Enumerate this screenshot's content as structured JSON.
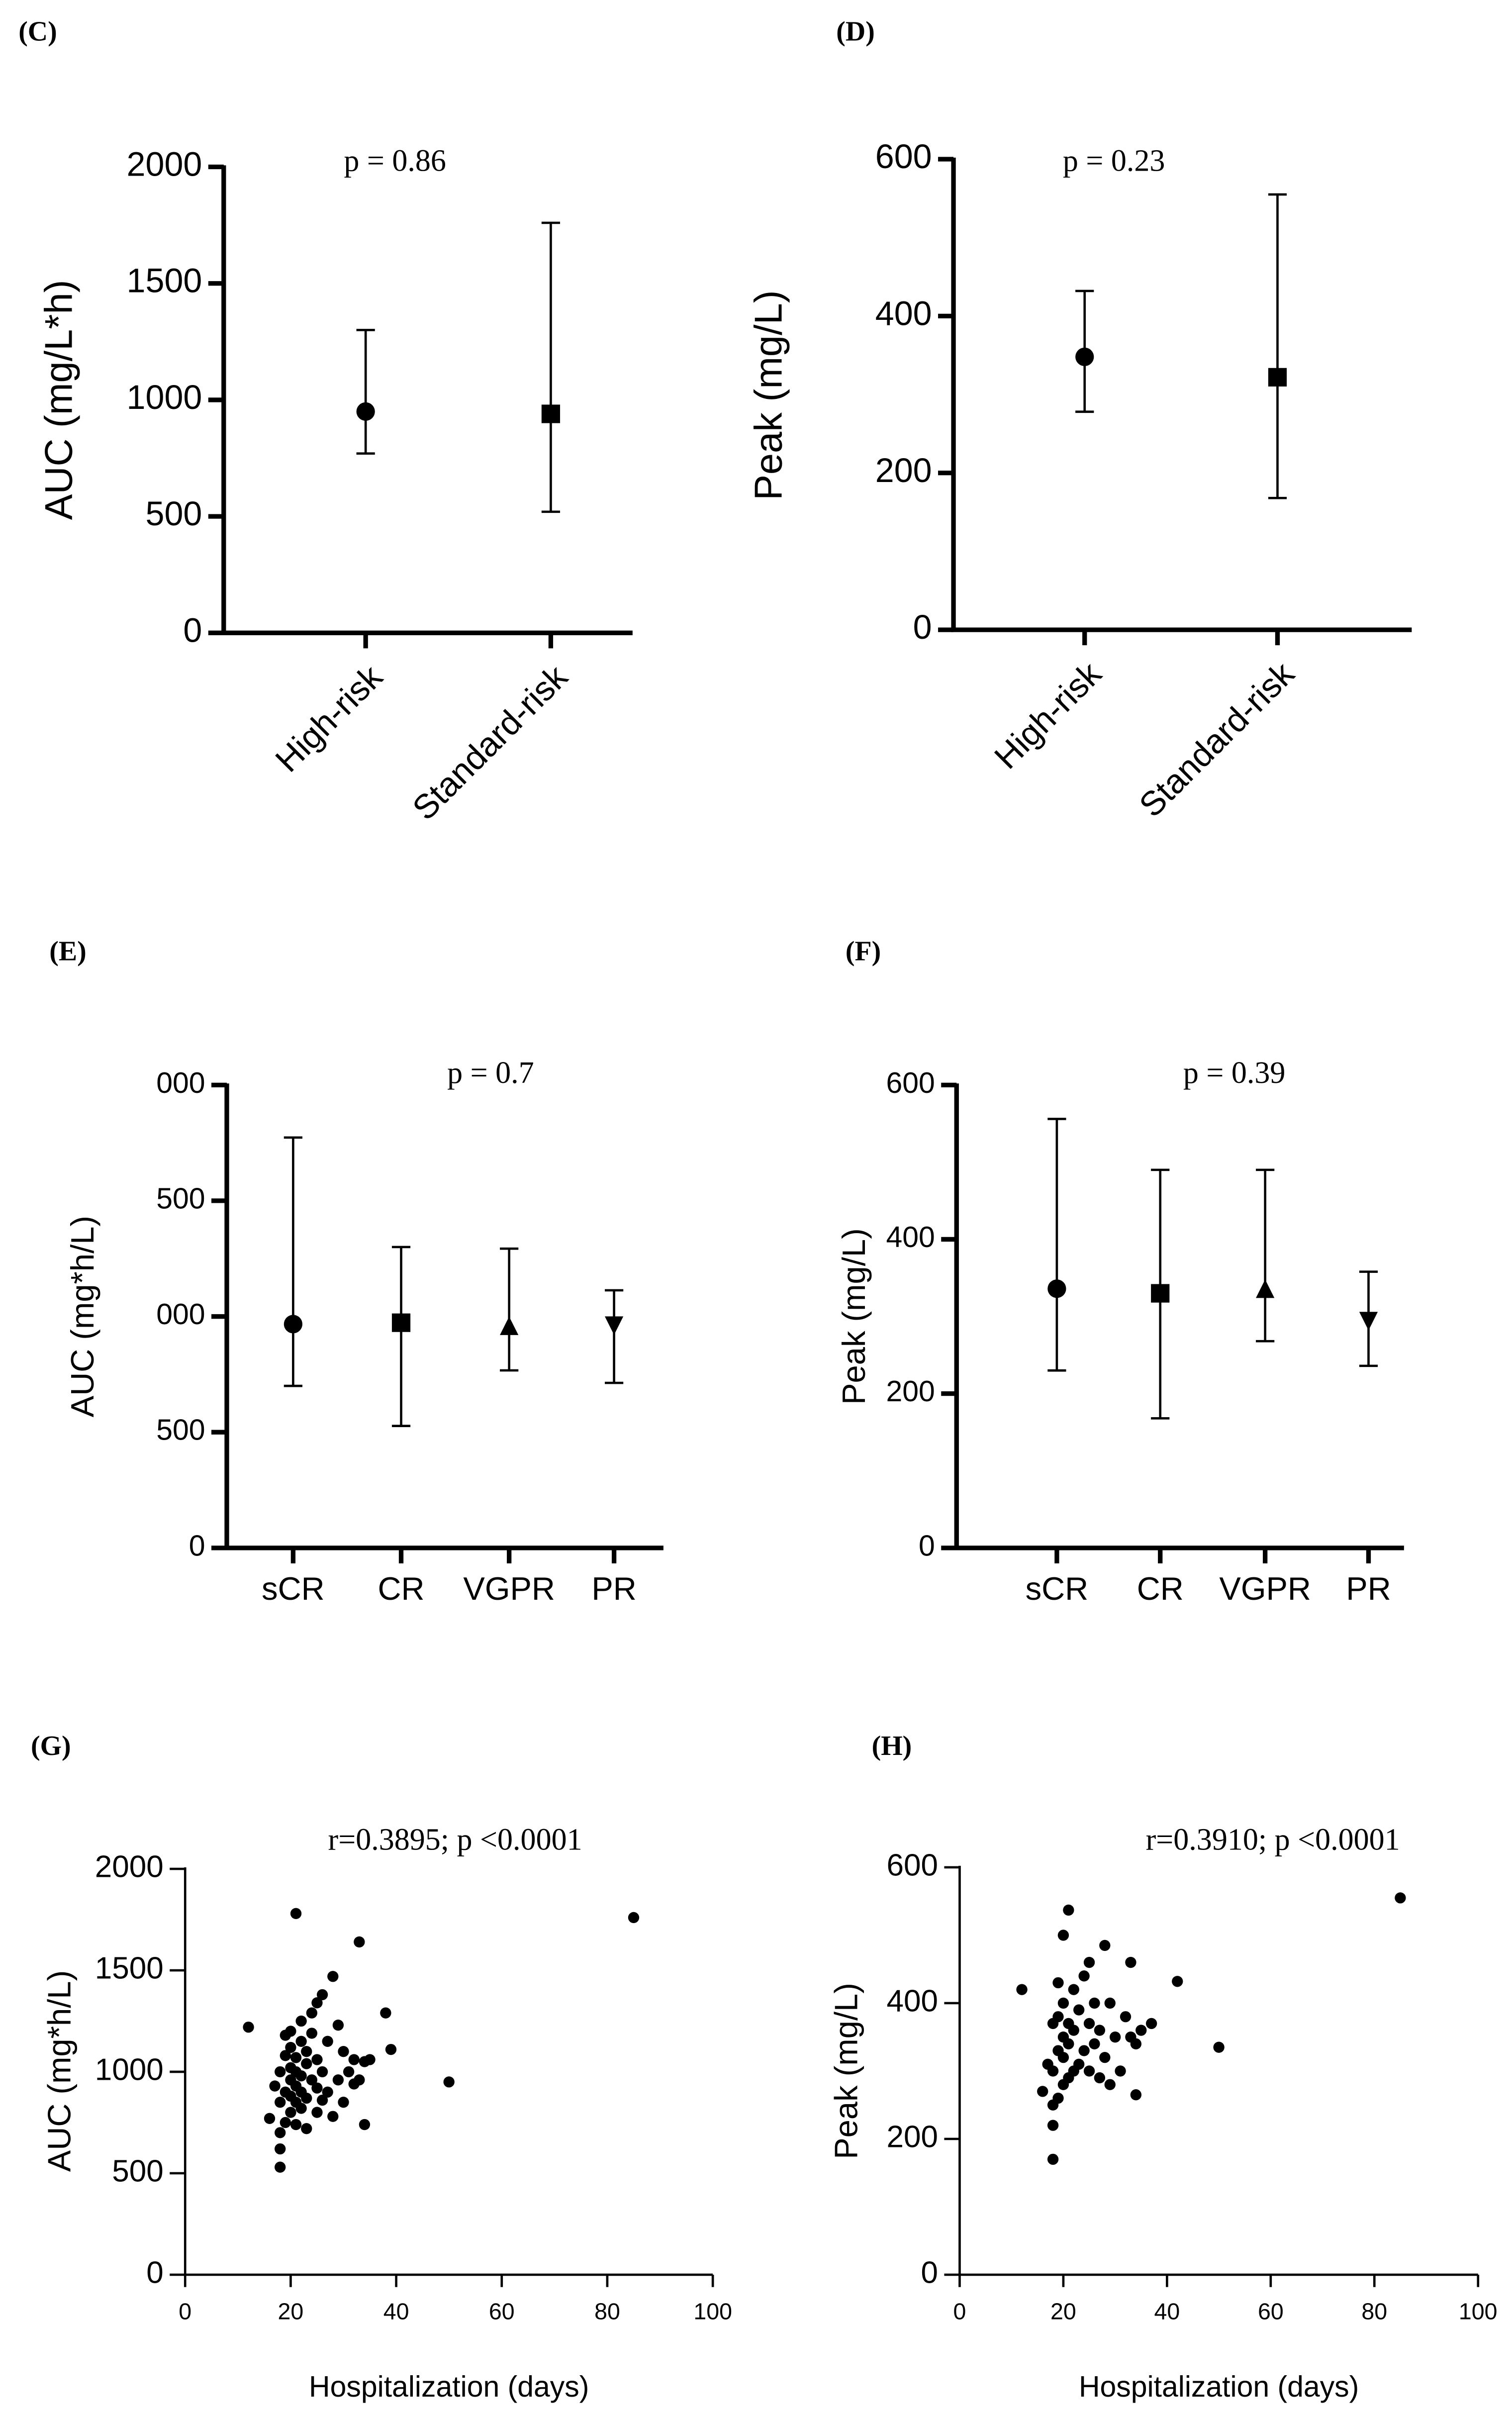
{
  "chart_data": [
    {
      "type": "errorbar",
      "panel": "(C)",
      "annotation": "p = 0.86",
      "ylabel": "AUC (mg/L*h)",
      "categories": [
        "High-risk",
        "Standard-risk"
      ],
      "values": [
        950,
        940
      ],
      "lower": [
        770,
        520
      ],
      "upper": [
        1300,
        1760
      ],
      "markers": [
        "circle",
        "square"
      ],
      "color": "#000000",
      "xtick_rotation": 45,
      "ylim": [
        0,
        2000
      ],
      "yticks": [
        0,
        500,
        1000,
        1500,
        2000
      ]
    },
    {
      "type": "errorbar",
      "panel": "(D)",
      "annotation": "p = 0.23",
      "ylabel": "Peak (mg/L)",
      "categories": [
        "High-risk",
        "Standard-risk"
      ],
      "values": [
        348,
        322
      ],
      "lower": [
        278,
        168
      ],
      "upper": [
        432,
        555
      ],
      "markers": [
        "circle",
        "square"
      ],
      "color": "#000000",
      "xtick_rotation": 45,
      "ylim": [
        0,
        600
      ],
      "yticks": [
        0,
        200,
        400,
        600
      ]
    },
    {
      "type": "errorbar",
      "panel": "(E)",
      "annotation": "p = 0.7",
      "ylabel": "AUC (mg*h/L)",
      "categories": [
        "sCR",
        "CR",
        "VGPR",
        "PR"
      ],
      "values": [
        967,
        973,
        953,
        967
      ],
      "lower": [
        700,
        527,
        767,
        713
      ],
      "upper": [
        1773,
        1300,
        1293,
        1113
      ],
      "markers": [
        "circle",
        "square",
        "triangle",
        "triangle-down"
      ],
      "color": "#000000",
      "xtick_rotation": 0,
      "ylim": [
        0,
        2000
      ],
      "yticks": [
        0,
        500,
        {
          "value": 1000,
          "label": "000"
        },
        {
          "value": 1500,
          "label": "500"
        },
        {
          "value": 2000,
          "label": "000"
        }
      ]
    },
    {
      "type": "errorbar",
      "panel": "(F)",
      "annotation": "p = 0.39",
      "ylabel": "Peak (mg/L)",
      "categories": [
        "sCR",
        "CR",
        "VGPR",
        "PR"
      ],
      "values": [
        336,
        330,
        334,
        296
      ],
      "lower": [
        230,
        168,
        268,
        236
      ],
      "upper": [
        556,
        490,
        490,
        358
      ],
      "markers": [
        "circle",
        "square",
        "triangle",
        "triangle-down"
      ],
      "color": "#000000",
      "xtick_rotation": 0,
      "ylim": [
        0,
        600
      ],
      "yticks": [
        0,
        200,
        400,
        600
      ]
    },
    {
      "type": "scatter",
      "panel": "(G)",
      "annotation": "r=0.3895; p <0.0001",
      "ylabel": "AUC (mg*h/L)",
      "xlabel": "Hospitalization (days)",
      "color": "#000000",
      "x": [
        12,
        16,
        17,
        18,
        18,
        18,
        18,
        18,
        19,
        19,
        19,
        19,
        20,
        20,
        20,
        20,
        20,
        20,
        21,
        21,
        21,
        21,
        21,
        21,
        22,
        22,
        22,
        22,
        22,
        23,
        23,
        23,
        23,
        24,
        24,
        24,
        25,
        25,
        25,
        25,
        26,
        26,
        26,
        27,
        27,
        28,
        28,
        29,
        29,
        30,
        30,
        31,
        32,
        32,
        33,
        33,
        34,
        34,
        35,
        38,
        39,
        50,
        85
      ],
      "values": [
        1220,
        770,
        930,
        530,
        620,
        700,
        850,
        1000,
        750,
        900,
        1080,
        1180,
        800,
        880,
        960,
        1020,
        1120,
        1200,
        1780,
        740,
        850,
        930,
        1000,
        1070,
        820,
        900,
        1150,
        1250,
        980,
        720,
        870,
        1040,
        1100,
        960,
        1190,
        1290,
        800,
        920,
        1060,
        1340,
        860,
        1000,
        1380,
        900,
        1150,
        780,
        1470,
        960,
        1230,
        850,
        1100,
        1000,
        940,
        1060,
        1640,
        960,
        740,
        1050,
        1060,
        1290,
        1110,
        950,
        1760
      ],
      "xlim": [
        0,
        100
      ],
      "xticks": [
        0,
        20,
        40,
        60,
        80,
        100
      ],
      "ylim": [
        0,
        2000
      ],
      "yticks": [
        0,
        500,
        1000,
        1500,
        2000
      ]
    },
    {
      "type": "scatter",
      "panel": "(H)",
      "annotation": "r=0.3910; p <0.0001",
      "ylabel": "Peak (mg/L)",
      "xlabel": "Hospitalization (days)",
      "color": "#000000",
      "x": [
        12,
        16,
        17,
        18,
        18,
        18,
        18,
        18,
        19,
        19,
        19,
        19,
        20,
        20,
        20,
        20,
        20,
        21,
        21,
        21,
        21,
        22,
        22,
        22,
        23,
        23,
        24,
        24,
        25,
        25,
        25,
        26,
        26,
        27,
        27,
        28,
        28,
        29,
        29,
        30,
        31,
        32,
        33,
        33,
        34,
        34,
        35,
        37,
        42,
        50,
        85
      ],
      "values": [
        420,
        270,
        310,
        170,
        220,
        250,
        300,
        370,
        260,
        330,
        380,
        430,
        280,
        320,
        350,
        500,
        400,
        537,
        290,
        340,
        370,
        300,
        360,
        420,
        310,
        390,
        330,
        440,
        300,
        370,
        460,
        340,
        400,
        290,
        360,
        485,
        320,
        280,
        400,
        350,
        300,
        380,
        460,
        350,
        265,
        340,
        360,
        370,
        432,
        335,
        555
      ],
      "xlim": [
        0,
        100
      ],
      "xticks": [
        0,
        20,
        40,
        60,
        80,
        100
      ],
      "ylim": [
        0,
        600
      ],
      "yticks": [
        0,
        200,
        400,
        600
      ]
    }
  ]
}
